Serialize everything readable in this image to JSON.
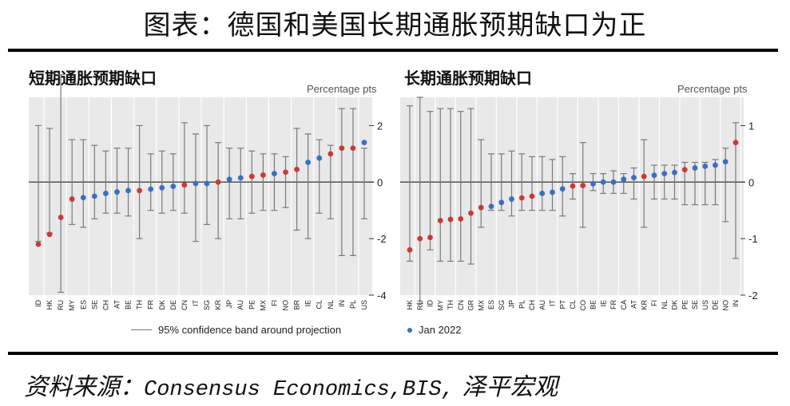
{
  "title": "图表：德国和美国长期通胀预期缺口为正",
  "colors": {
    "blue": "#3b6fc0",
    "red": "#c83a3a",
    "whisker": "#7a7a7a",
    "panel_bg": "#e9e9e9",
    "grid": "#ffffff"
  },
  "legend": {
    "band_label": "95% confidence band around projection",
    "point_label": "Jan 2022"
  },
  "source": {
    "prefix": "资料来源：",
    "latin": "Consensus Economics,BIS,",
    "suffix": " 泽平宏观"
  },
  "chart_data": [
    {
      "type": "scatter",
      "title": "短期通胀预期缺口",
      "unit_label": "Percentage pts",
      "ylim": [
        -4,
        3
      ],
      "yticks": [
        2,
        0,
        -2,
        -4
      ],
      "grid": "vertical",
      "categories": [
        "ID",
        "HK",
        "RU",
        "MY",
        "ES",
        "SE",
        "CH",
        "AT",
        "BE",
        "TH",
        "FR",
        "DK",
        "DE",
        "CN",
        "IT",
        "SG",
        "KR",
        "JP",
        "AU",
        "PE",
        "MX",
        "FI",
        "NO",
        "BR",
        "IE",
        "CL",
        "NL",
        "IN",
        "PL",
        "US"
      ],
      "series": [
        {
          "name": "Jan 2022",
          "values": [
            -2.2,
            -1.85,
            -1.25,
            -0.6,
            -0.55,
            -0.5,
            -0.4,
            -0.35,
            -0.3,
            -0.3,
            -0.25,
            -0.2,
            -0.15,
            -0.1,
            -0.05,
            -0.05,
            0.0,
            0.1,
            0.15,
            0.2,
            0.25,
            0.3,
            0.35,
            0.45,
            0.7,
            0.85,
            1.0,
            1.2,
            1.2,
            1.4
          ],
          "colors": [
            "red",
            "red",
            "red",
            "red",
            "blue",
            "blue",
            "blue",
            "blue",
            "blue",
            "red",
            "blue",
            "blue",
            "blue",
            "red",
            "blue",
            "blue",
            "red",
            "blue",
            "blue",
            "red",
            "red",
            "blue",
            "red",
            "red",
            "blue",
            "blue",
            "red",
            "red",
            "red",
            "blue"
          ]
        }
      ],
      "band_low": [
        -2.1,
        -1.8,
        -3.9,
        -1.5,
        -1.6,
        -1.3,
        -1.1,
        -1.1,
        -1.2,
        -2.0,
        -1.0,
        -1.1,
        -1.0,
        -1.1,
        -2.1,
        -1.5,
        -2.0,
        -1.3,
        -1.3,
        -1.1,
        -1.0,
        -1.0,
        -0.9,
        -1.7,
        -2.0,
        -1.1,
        -1.3,
        -2.6,
        -2.6,
        -1.3
      ],
      "band_high": [
        2.0,
        1.9,
        3.8,
        1.5,
        1.5,
        1.3,
        1.1,
        1.2,
        1.2,
        2.0,
        1.0,
        1.1,
        1.0,
        2.1,
        1.7,
        2.0,
        1.4,
        1.2,
        1.2,
        1.1,
        1.0,
        1.0,
        0.9,
        1.9,
        1.7,
        1.5,
        1.3,
        2.6,
        2.6,
        1.2
      ]
    },
    {
      "type": "scatter",
      "title": "长期通胀预期缺口",
      "unit_label": "Percentage pts",
      "ylim": [
        -2,
        1.5
      ],
      "yticks": [
        1,
        0,
        -1,
        -2
      ],
      "grid": "vertical",
      "categories": [
        "HK",
        "RU",
        "ID",
        "MY",
        "TH",
        "CN",
        "GR",
        "MX",
        "ES",
        "SG",
        "JP",
        "PL",
        "CH",
        "AU",
        "IT",
        "PT",
        "CL",
        "CO",
        "BE",
        "IE",
        "FR",
        "CA",
        "AT",
        "KR",
        "FI",
        "NL",
        "DK",
        "PE",
        "SE",
        "US",
        "DE",
        "NO",
        "IN"
      ],
      "series": [
        {
          "name": "Jan 2022",
          "values": [
            -1.2,
            -1.0,
            -0.98,
            -0.68,
            -0.66,
            -0.65,
            -0.55,
            -0.45,
            -0.43,
            -0.36,
            -0.3,
            -0.28,
            -0.25,
            -0.2,
            -0.18,
            -0.12,
            -0.07,
            -0.06,
            -0.03,
            0.0,
            0.0,
            0.05,
            0.08,
            0.1,
            0.12,
            0.15,
            0.17,
            0.22,
            0.25,
            0.28,
            0.3,
            0.36,
            0.7
          ],
          "colors": [
            "red",
            "red",
            "red",
            "red",
            "red",
            "red",
            "red",
            "red",
            "blue",
            "blue",
            "blue",
            "red",
            "red",
            "blue",
            "blue",
            "blue",
            "red",
            "red",
            "blue",
            "blue",
            "blue",
            "blue",
            "blue",
            "red",
            "blue",
            "blue",
            "blue",
            "red",
            "blue",
            "blue",
            "blue",
            "blue",
            "red"
          ]
        }
      ],
      "band_low": [
        -1.4,
        -2.15,
        -1.2,
        -1.4,
        -1.4,
        -1.4,
        -1.45,
        -0.8,
        -0.5,
        -0.5,
        -0.6,
        -0.5,
        -0.5,
        -0.5,
        -0.5,
        -0.6,
        -0.3,
        -0.8,
        -0.15,
        -0.2,
        -0.2,
        -0.2,
        -0.3,
        -0.8,
        -0.3,
        -0.3,
        -0.3,
        -0.4,
        -0.4,
        -0.4,
        -0.4,
        -0.7,
        -1.35
      ],
      "band_high": [
        1.35,
        1.5,
        1.25,
        1.3,
        1.3,
        1.25,
        1.3,
        0.75,
        0.5,
        0.5,
        0.55,
        0.5,
        0.45,
        0.45,
        0.4,
        0.45,
        0.15,
        0.7,
        0.15,
        0.15,
        0.2,
        0.15,
        0.25,
        0.75,
        0.3,
        0.3,
        0.3,
        0.35,
        0.35,
        0.35,
        0.4,
        0.6,
        1.05
      ]
    }
  ]
}
